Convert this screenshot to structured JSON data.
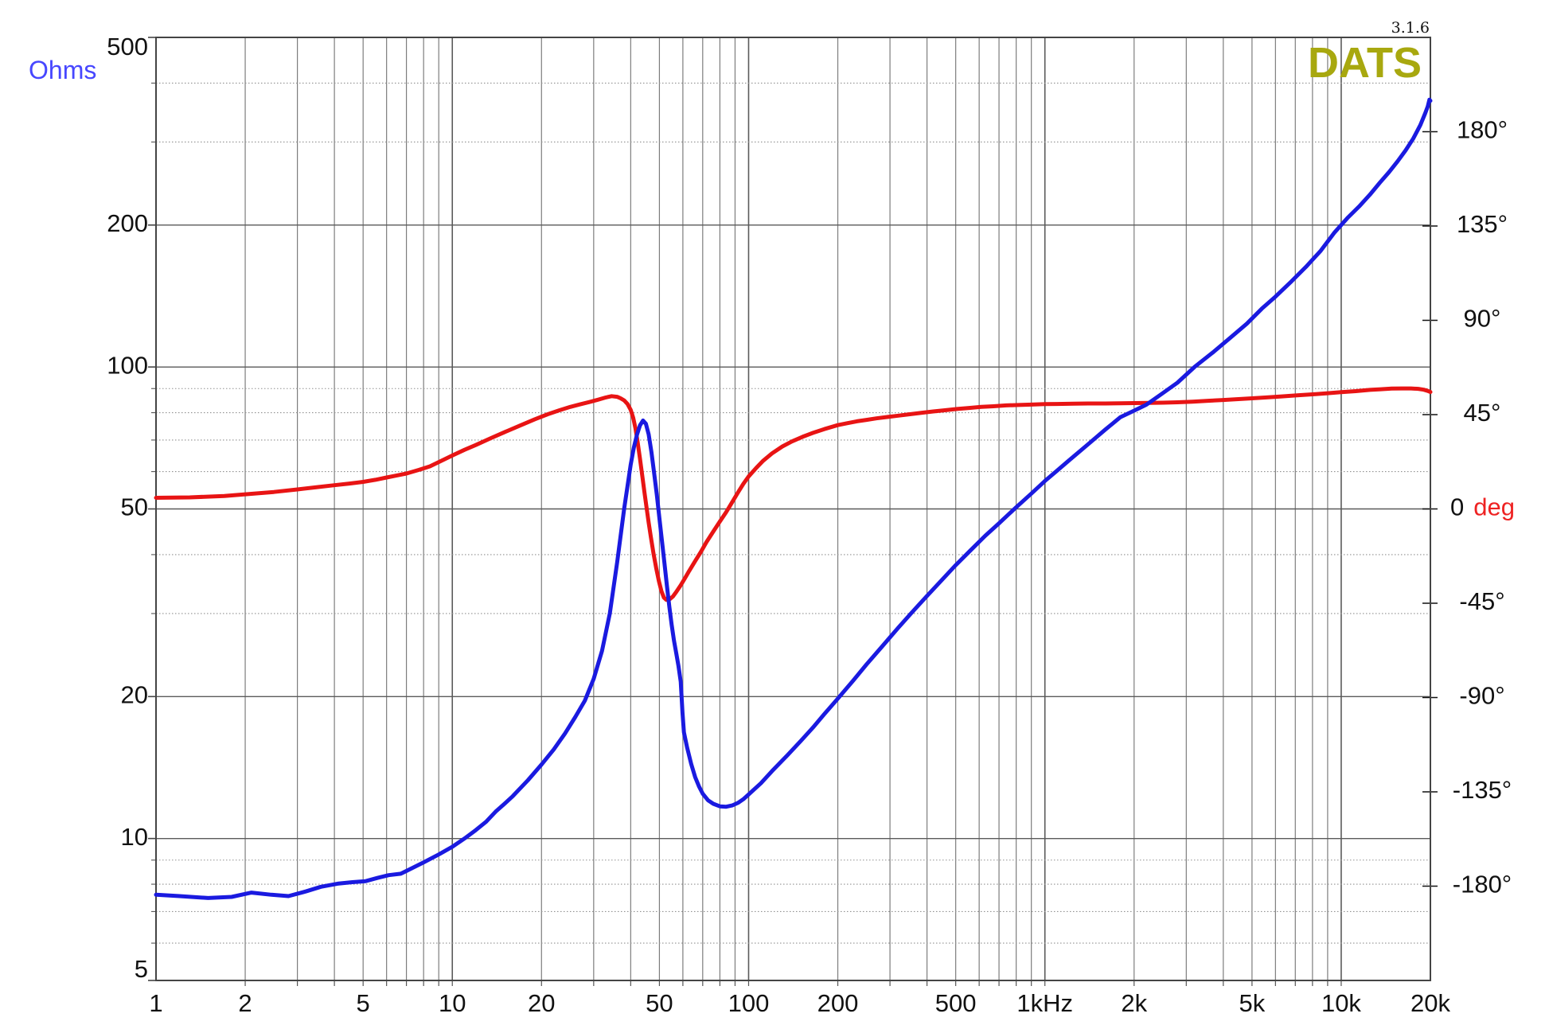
{
  "app": {
    "version_text": "3.1.6",
    "logo_text": "DATS",
    "logo_color": "#a8a80f"
  },
  "chart_data": {
    "type": "line",
    "title": "",
    "grid": "log-log, minor lines per decade",
    "legend_position": "none",
    "background": "#ffffff",
    "border_color": "#444444",
    "grid_major_color": "#5a5a5a",
    "grid_minor_color": "#7d7d7d",
    "grid_dotted_color": "#909090",
    "axes": {
      "x": {
        "scale": "log",
        "min": 1,
        "max": 20000,
        "unit": "Hz",
        "ticks": [
          {
            "f": 1,
            "label": "1"
          },
          {
            "f": 2,
            "label": "2"
          },
          {
            "f": 5,
            "label": "5"
          },
          {
            "f": 10,
            "label": "10"
          },
          {
            "f": 20,
            "label": "20"
          },
          {
            "f": 50,
            "label": "50"
          },
          {
            "f": 100,
            "label": "100"
          },
          {
            "f": 200,
            "label": "200"
          },
          {
            "f": 500,
            "label": "500"
          },
          {
            "f": 1000,
            "label": "1kHz"
          },
          {
            "f": 2000,
            "label": "2k"
          },
          {
            "f": 5000,
            "label": "5k"
          },
          {
            "f": 10000,
            "label": "10k"
          },
          {
            "f": 20000,
            "label": "20k"
          }
        ]
      },
      "ohms": {
        "label": "Ohms",
        "label_color": "#4747ff",
        "scale": "log",
        "min": 5,
        "max": 500,
        "major": [
          500,
          200,
          100,
          50,
          20,
          10,
          5
        ],
        "minor": [
          400,
          300,
          90,
          80,
          70,
          60,
          40,
          30,
          9,
          8,
          7,
          6
        ]
      },
      "phase": {
        "scale": "linear",
        "min": -225,
        "max": 225,
        "tick_step": 45,
        "zero_label": "0",
        "zero_unit": "deg",
        "zero_unit_color": "#ee2222",
        "labels": [
          {
            "deg": 180,
            "label": "180°"
          },
          {
            "deg": 135,
            "label": "135°"
          },
          {
            "deg": 90,
            "label": "90°"
          },
          {
            "deg": 45,
            "label": "45°"
          },
          {
            "deg": 0,
            "label": "0 deg"
          },
          {
            "deg": -45,
            "label": "-45°"
          },
          {
            "deg": -90,
            "label": "-90°"
          },
          {
            "deg": -135,
            "label": "-135°"
          },
          {
            "deg": -180,
            "label": "-180°"
          }
        ]
      }
    },
    "series": [
      {
        "name": "phase",
        "yaxis": "phase",
        "color": "#e81414",
        "width": 5,
        "points": [
          [
            1,
            5.3
          ],
          [
            1.3,
            5.5
          ],
          [
            1.7,
            6.2
          ],
          [
            2,
            7.0
          ],
          [
            2.5,
            8.1
          ],
          [
            3,
            9.3
          ],
          [
            3.5,
            10.4
          ],
          [
            4,
            11.3
          ],
          [
            4.5,
            12.1
          ],
          [
            5,
            12.9
          ],
          [
            5.5,
            13.9
          ],
          [
            6,
            15.0
          ],
          [
            6.5,
            16.0
          ],
          [
            7,
            16.9
          ],
          [
            7.7,
            18.6
          ],
          [
            8.4,
            20.3
          ],
          [
            9.2,
            23.0
          ],
          [
            10,
            25.5
          ],
          [
            11,
            28.2
          ],
          [
            12,
            30.5
          ],
          [
            13.5,
            33.8
          ],
          [
            15,
            36.6
          ],
          [
            17,
            39.9
          ],
          [
            19,
            42.8
          ],
          [
            21,
            45.2
          ],
          [
            23,
            47.1
          ],
          [
            25,
            48.7
          ],
          [
            27,
            49.9
          ],
          [
            29,
            51.0
          ],
          [
            31,
            52.1
          ],
          [
            33,
            53.2
          ],
          [
            34.5,
            53.8
          ],
          [
            36,
            53.5
          ],
          [
            37,
            52.8
          ],
          [
            38,
            51.8
          ],
          [
            39,
            50.1
          ],
          [
            40,
            47.3
          ],
          [
            40.8,
            43.5
          ],
          [
            41.5,
            38.5
          ],
          [
            42.2,
            32.0
          ],
          [
            43,
            24.0
          ],
          [
            43.8,
            15.5
          ],
          [
            44.5,
            8.0
          ],
          [
            45.3,
            0.0
          ],
          [
            46,
            -6.5
          ],
          [
            46.8,
            -13.5
          ],
          [
            47.8,
            -21.5
          ],
          [
            48.8,
            -28.5
          ],
          [
            49.8,
            -34.5
          ],
          [
            50.8,
            -39.3
          ],
          [
            51.8,
            -42.3
          ],
          [
            52.8,
            -43.4
          ],
          [
            54,
            -43.2
          ],
          [
            55.5,
            -41.8
          ],
          [
            57,
            -39.6
          ],
          [
            59,
            -36.4
          ],
          [
            61,
            -33.0
          ],
          [
            63,
            -29.6
          ],
          [
            66,
            -24.9
          ],
          [
            69,
            -20.5
          ],
          [
            72,
            -15.9
          ],
          [
            76,
            -10.8
          ],
          [
            80,
            -6.0
          ],
          [
            84,
            -1.5
          ],
          [
            88,
            3.2
          ],
          [
            92,
            7.8
          ],
          [
            96,
            12.0
          ],
          [
            100,
            15.5
          ],
          [
            106,
            19.5
          ],
          [
            112,
            23.0
          ],
          [
            120,
            26.5
          ],
          [
            130,
            29.8
          ],
          [
            140,
            32.2
          ],
          [
            152,
            34.4
          ],
          [
            165,
            36.3
          ],
          [
            180,
            38.1
          ],
          [
            200,
            40.0
          ],
          [
            215,
            40.9
          ],
          [
            232,
            41.8
          ],
          [
            250,
            42.5
          ],
          [
            270,
            43.2
          ],
          [
            295,
            43.9
          ],
          [
            320,
            44.5
          ],
          [
            350,
            45.2
          ],
          [
            385,
            45.9
          ],
          [
            420,
            46.5
          ],
          [
            460,
            47.1
          ],
          [
            505,
            47.7
          ],
          [
            555,
            48.2
          ],
          [
            610,
            48.7
          ],
          [
            670,
            49.0
          ],
          [
            740,
            49.4
          ],
          [
            815,
            49.6
          ],
          [
            900,
            49.8
          ],
          [
            1000,
            50.0
          ],
          [
            1100,
            50.1
          ],
          [
            1250,
            50.2
          ],
          [
            1400,
            50.3
          ],
          [
            1600,
            50.3
          ],
          [
            1800,
            50.4
          ],
          [
            2000,
            50.5
          ],
          [
            2250,
            50.6
          ],
          [
            2500,
            50.7
          ],
          [
            2800,
            50.9
          ],
          [
            3150,
            51.2
          ],
          [
            3550,
            51.6
          ],
          [
            4000,
            52.0
          ],
          [
            4500,
            52.4
          ],
          [
            5000,
            52.8
          ],
          [
            5600,
            53.2
          ],
          [
            6300,
            53.7
          ],
          [
            7100,
            54.2
          ],
          [
            8000,
            54.7
          ],
          [
            9000,
            55.2
          ],
          [
            10000,
            55.7
          ],
          [
            11200,
            56.2
          ],
          [
            12500,
            56.8
          ],
          [
            13600,
            57.1
          ],
          [
            14800,
            57.4
          ],
          [
            16000,
            57.5
          ],
          [
            17200,
            57.5
          ],
          [
            18200,
            57.3
          ],
          [
            19000,
            56.9
          ],
          [
            19600,
            56.3
          ],
          [
            20000,
            55.8
          ]
        ]
      },
      {
        "name": "impedance",
        "yaxis": "ohms",
        "color": "#1a1ae0",
        "width": 5,
        "points": [
          [
            1,
            7.6
          ],
          [
            1.2,
            7.55
          ],
          [
            1.5,
            7.48
          ],
          [
            1.8,
            7.52
          ],
          [
            2.1,
            7.68
          ],
          [
            2.45,
            7.6
          ],
          [
            2.8,
            7.55
          ],
          [
            3.2,
            7.72
          ],
          [
            3.6,
            7.9
          ],
          [
            4.1,
            8.02
          ],
          [
            4.6,
            8.08
          ],
          [
            5.1,
            8.12
          ],
          [
            5.6,
            8.25
          ],
          [
            6.1,
            8.36
          ],
          [
            6.7,
            8.42
          ],
          [
            7.3,
            8.65
          ],
          [
            8,
            8.9
          ],
          [
            9,
            9.25
          ],
          [
            10,
            9.6
          ],
          [
            11,
            10.0
          ],
          [
            12,
            10.42
          ],
          [
            13,
            10.85
          ],
          [
            14,
            11.4
          ],
          [
            15,
            11.85
          ],
          [
            16,
            12.3
          ],
          [
            18,
            13.3
          ],
          [
            20,
            14.35
          ],
          [
            22,
            15.45
          ],
          [
            24,
            16.7
          ],
          [
            26,
            18.1
          ],
          [
            28,
            19.6
          ],
          [
            30,
            21.8
          ],
          [
            32,
            25.0
          ],
          [
            34,
            30.0
          ],
          [
            36,
            38.5
          ],
          [
            38,
            50.0
          ],
          [
            40,
            62.0
          ],
          [
            41,
            67.5
          ],
          [
            42,
            71.8
          ],
          [
            43,
            75.2
          ],
          [
            44,
            77.0
          ],
          [
            45,
            75.8
          ],
          [
            46,
            72.0
          ],
          [
            47,
            66.0
          ],
          [
            48,
            59.5
          ],
          [
            49,
            53.5
          ],
          [
            50,
            47.8
          ],
          [
            51,
            42.8
          ],
          [
            52,
            38.3
          ],
          [
            53,
            34.4
          ],
          [
            54,
            31.0
          ],
          [
            55,
            28.4
          ],
          [
            56,
            26.3
          ],
          [
            57,
            24.7
          ],
          [
            58,
            23.2
          ],
          [
            59,
            21.5
          ],
          [
            59.8,
            18.5
          ],
          [
            60.5,
            16.8
          ],
          [
            62,
            15.6
          ],
          [
            64,
            14.4
          ],
          [
            66,
            13.5
          ],
          [
            68,
            12.9
          ],
          [
            70,
            12.45
          ],
          [
            73,
            12.05
          ],
          [
            76,
            11.85
          ],
          [
            80,
            11.7
          ],
          [
            84,
            11.68
          ],
          [
            88,
            11.75
          ],
          [
            92,
            11.9
          ],
          [
            96,
            12.12
          ],
          [
            100,
            12.4
          ],
          [
            110,
            13.1
          ],
          [
            120,
            13.9
          ],
          [
            135,
            15.0
          ],
          [
            150,
            16.1
          ],
          [
            165,
            17.2
          ],
          [
            180,
            18.35
          ],
          [
            200,
            19.8
          ],
          [
            225,
            21.6
          ],
          [
            250,
            23.4
          ],
          [
            280,
            25.4
          ],
          [
            320,
            28.0
          ],
          [
            360,
            30.4
          ],
          [
            400,
            32.7
          ],
          [
            450,
            35.4
          ],
          [
            500,
            38.0
          ],
          [
            560,
            40.8
          ],
          [
            630,
            43.9
          ],
          [
            700,
            46.6
          ],
          [
            800,
            50.4
          ],
          [
            900,
            53.9
          ],
          [
            1000,
            57.3
          ],
          [
            1100,
            60.3
          ],
          [
            1200,
            63.2
          ],
          [
            1400,
            68.6
          ],
          [
            1600,
            73.7
          ],
          [
            1800,
            78.3
          ],
          [
            2000,
            80.8
          ],
          [
            2200,
            83.2
          ],
          [
            2500,
            88.0
          ],
          [
            2800,
            92.6
          ],
          [
            3200,
            100.0
          ],
          [
            3700,
            107.5
          ],
          [
            4200,
            115.0
          ],
          [
            4800,
            123.5
          ],
          [
            5400,
            133.0
          ],
          [
            6000,
            141.0
          ],
          [
            6800,
            152.0
          ],
          [
            7600,
            163.0
          ],
          [
            8500,
            176.0
          ],
          [
            9500,
            193.0
          ],
          [
            10500,
            207.0
          ],
          [
            11500,
            219.0
          ],
          [
            12500,
            232.0
          ],
          [
            13500,
            246.0
          ],
          [
            14500,
            259.0
          ],
          [
            15500,
            273.0
          ],
          [
            16500,
            288.0
          ],
          [
            17500,
            305.0
          ],
          [
            18500,
            326.0
          ],
          [
            19200,
            345.0
          ],
          [
            19600,
            357.0
          ],
          [
            19850,
            369.0
          ],
          [
            20000,
            367.0
          ]
        ]
      }
    ]
  }
}
